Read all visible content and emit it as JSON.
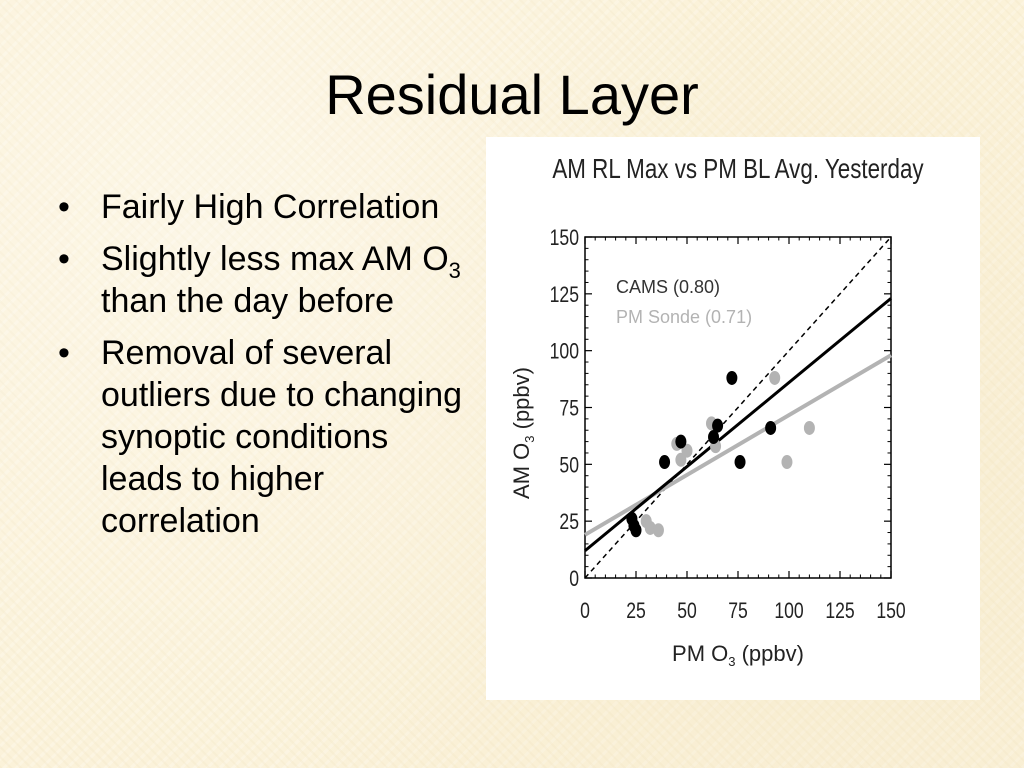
{
  "slide": {
    "title": "Residual Layer",
    "bullets": [
      {
        "text": "Fairly High Correlation"
      },
      {
        "pre": "Slightly less max AM O",
        "sub": "3",
        "post": " than the day before"
      },
      {
        "text": "Removal of several outliers due to changing synoptic conditions leads to higher correlation"
      }
    ]
  },
  "chart_data": {
    "type": "scatter",
    "title": "AM RL Max vs PM BL Avg. Yesterday",
    "xlabel": {
      "pre": "PM O",
      "sub": "3",
      "post": " (ppbv)"
    },
    "ylabel": {
      "pre": "AM O",
      "sub": "3",
      "post": " (ppbv)"
    },
    "xlim": [
      0,
      150
    ],
    "ylim": [
      0,
      150
    ],
    "xticks": [
      "0",
      "25",
      "50",
      "75",
      "100",
      "125",
      "150"
    ],
    "yticks": [
      "0",
      "25",
      "50",
      "75",
      "100",
      "125",
      "150"
    ],
    "xtick_values": [
      0,
      25,
      50,
      75,
      100,
      125,
      150
    ],
    "ytick_values": [
      0,
      25,
      50,
      75,
      100,
      125,
      150
    ],
    "grid": false,
    "one_to_one_line": true,
    "series": [
      {
        "name": "CAMS (0.80)",
        "color": "#000000",
        "points": [
          [
            23,
            26
          ],
          [
            24,
            23
          ],
          [
            25,
            21
          ],
          [
            39,
            51
          ],
          [
            47,
            60
          ],
          [
            63,
            62
          ],
          [
            65,
            67
          ],
          [
            72,
            88
          ],
          [
            76,
            51
          ],
          [
            91,
            66
          ]
        ],
        "fit": [
          [
            0,
            12
          ],
          [
            150,
            123
          ]
        ]
      },
      {
        "name": "PM Sonde (0.71)",
        "color": "#b3b3b3",
        "points": [
          [
            30,
            25
          ],
          [
            32,
            22
          ],
          [
            36,
            21
          ],
          [
            45,
            59
          ],
          [
            47,
            52
          ],
          [
            50,
            56
          ],
          [
            62,
            68
          ],
          [
            64,
            58
          ],
          [
            93,
            88
          ],
          [
            99,
            51
          ],
          [
            110,
            66
          ]
        ],
        "fit": [
          [
            0,
            19
          ],
          [
            150,
            98
          ]
        ]
      }
    ]
  }
}
